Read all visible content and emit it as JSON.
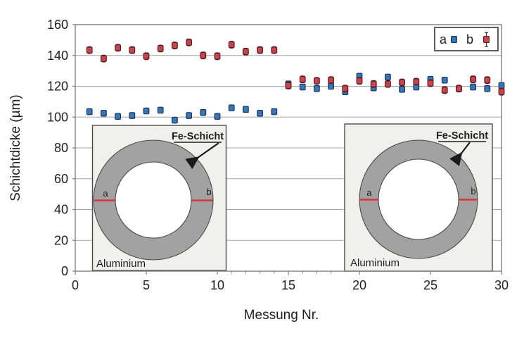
{
  "chart": {
    "ylabel": "Schichtdicke (µm)",
    "xlabel": "Messung Nr.",
    "colors": {
      "series_a_fill": "#3a76b7",
      "series_a_stroke": "#17375e",
      "series_b_fill": "#c8434e",
      "series_b_stroke": "#5f1a20",
      "error_bar": "#262626",
      "gridline": "#a6a6a6",
      "axis_frame": "#7f7f7f",
      "inset_background": "#f0f0ee",
      "inset_border": "#4d4d4d",
      "ring_fill": "#a2a2a2",
      "ring_stroke": "#4a4a4a",
      "mark_red": "#d9363e"
    }
  },
  "chart_data": {
    "type": "scatter",
    "title": "",
    "xlabel": "Messung Nr.",
    "ylabel": "Schichtdicke (µm)",
    "xlim": [
      0,
      30
    ],
    "ylim": [
      0,
      160
    ],
    "xticks": [
      0,
      5,
      10,
      15,
      20,
      25,
      30
    ],
    "yticks": [
      0,
      20,
      40,
      60,
      80,
      100,
      120,
      140,
      160
    ],
    "minor_xticks": [
      11,
      12,
      13,
      14,
      15,
      16,
      17,
      18
    ],
    "grid": "horizontal",
    "legend_position": "top-right",
    "x": [
      1,
      2,
      3,
      4,
      5,
      6,
      7,
      8,
      9,
      10,
      11,
      12,
      13,
      14,
      15,
      16,
      17,
      18,
      19,
      20,
      21,
      22,
      23,
      24,
      25,
      26,
      27,
      28,
      29,
      30
    ],
    "series": [
      {
        "name": "a",
        "color": "#3a76b7",
        "error": 1.3,
        "values": [
          103.5,
          102.5,
          100.5,
          101,
          104,
          104.5,
          98,
          101,
          103,
          100.5,
          106,
          105,
          102.5,
          103.5,
          121.5,
          119.5,
          118.5,
          120,
          116.5,
          126.5,
          119,
          126,
          118,
          119.5,
          124.5,
          124,
          118.5,
          119.5,
          118.5,
          120.5
        ]
      },
      {
        "name": "b",
        "color": "#c8434e",
        "error": 2.2,
        "values": [
          143.5,
          138,
          145,
          143.5,
          139.5,
          144.5,
          146.5,
          148.5,
          140,
          139.5,
          147,
          142.5,
          143.5,
          143.5,
          120.5,
          124.5,
          123.5,
          124,
          118.5,
          123.5,
          121.5,
          121.5,
          122.5,
          123,
          122,
          117.5,
          118.5,
          124.5,
          124,
          116.5
        ]
      }
    ]
  },
  "legend": {
    "item_a": "a",
    "item_b": "b"
  },
  "insets": [
    {
      "layer_label": "Fe-Schicht",
      "material_label": "Aluminium",
      "mark_a": "a",
      "mark_b": "b"
    },
    {
      "layer_label": "Fe-Schicht",
      "material_label": "Aluminium",
      "mark_a": "a",
      "mark_b": "b"
    }
  ]
}
